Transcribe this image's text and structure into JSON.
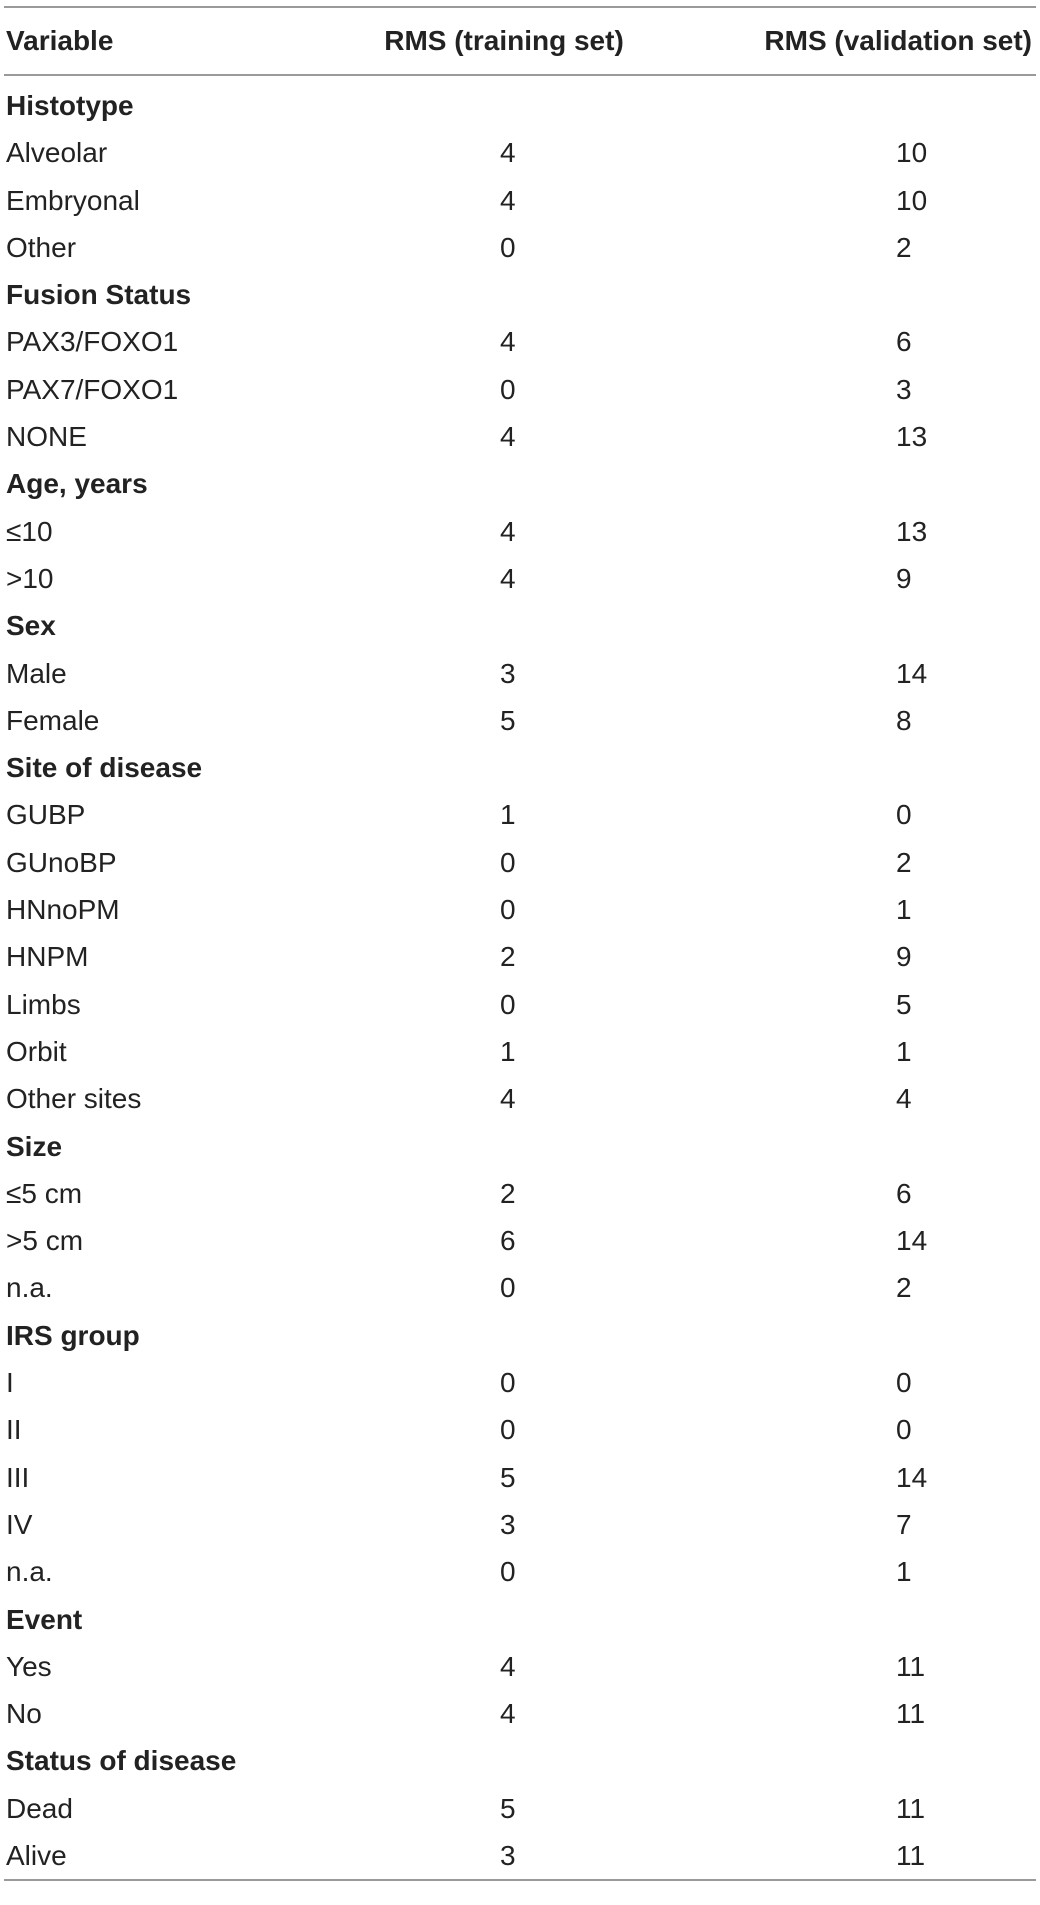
{
  "header": {
    "variable": "Variable",
    "training": "RMS (training set)",
    "validation": "RMS (validation set)"
  },
  "rows": [
    {
      "type": "section",
      "label": "Histotype"
    },
    {
      "type": "data",
      "label": "Alveolar",
      "training": "4",
      "validation": "10"
    },
    {
      "type": "data",
      "label": "Embryonal",
      "training": "4",
      "validation": "10"
    },
    {
      "type": "data",
      "label": "Other",
      "training": "0",
      "validation": "2"
    },
    {
      "type": "section",
      "label": "Fusion Status"
    },
    {
      "type": "data",
      "label": "PAX3/FOXO1",
      "training": "4",
      "validation": "6"
    },
    {
      "type": "data",
      "label": "PAX7/FOXO1",
      "training": "0",
      "validation": "3"
    },
    {
      "type": "data",
      "label": "NONE",
      "training": "4",
      "validation": "13"
    },
    {
      "type": "section",
      "label": "Age, years"
    },
    {
      "type": "data",
      "label": "≤10",
      "training": "4",
      "validation": "13"
    },
    {
      "type": "data",
      "label": ">10",
      "training": "4",
      "validation": "9"
    },
    {
      "type": "section",
      "label": "Sex"
    },
    {
      "type": "data",
      "label": "Male",
      "training": "3",
      "validation": "14"
    },
    {
      "type": "data",
      "label": "Female",
      "training": "5",
      "validation": "8"
    },
    {
      "type": "section",
      "label": "Site of disease"
    },
    {
      "type": "data",
      "label": "GUBP",
      "training": "1",
      "validation": "0"
    },
    {
      "type": "data",
      "label": "GUnoBP",
      "training": "0",
      "validation": "2"
    },
    {
      "type": "data",
      "label": "HNnoPM",
      "training": "0",
      "validation": "1"
    },
    {
      "type": "data",
      "label": "HNPM",
      "training": "2",
      "validation": "9"
    },
    {
      "type": "data",
      "label": "Limbs",
      "training": "0",
      "validation": "5"
    },
    {
      "type": "data",
      "label": "Orbit",
      "training": "1",
      "validation": "1"
    },
    {
      "type": "data",
      "label": "Other sites",
      "training": "4",
      "validation": "4"
    },
    {
      "type": "section",
      "label": "Size"
    },
    {
      "type": "data",
      "label": "≤5 cm",
      "training": "2",
      "validation": "6"
    },
    {
      "type": "data",
      "label": ">5 cm",
      "training": "6",
      "validation": "14"
    },
    {
      "type": "data",
      "label": "n.a.",
      "training": "0",
      "validation": "2"
    },
    {
      "type": "section",
      "label": "IRS group"
    },
    {
      "type": "data",
      "label": "I",
      "training": "0",
      "validation": "0"
    },
    {
      "type": "data",
      "label": "II",
      "training": "0",
      "validation": "0"
    },
    {
      "type": "data",
      "label": "III",
      "training": "5",
      "validation": "14"
    },
    {
      "type": "data",
      "label": "IV",
      "training": "3",
      "validation": "7"
    },
    {
      "type": "data",
      "label": "n.a.",
      "training": "0",
      "validation": "1"
    },
    {
      "type": "section",
      "label": "Event"
    },
    {
      "type": "data",
      "label": "Yes",
      "training": "4",
      "validation": "11"
    },
    {
      "type": "data",
      "label": "No",
      "training": "4",
      "validation": "11"
    },
    {
      "type": "section",
      "label": "Status of disease"
    },
    {
      "type": "data",
      "label": "Dead",
      "training": "5",
      "validation": "11"
    },
    {
      "type": "data",
      "label": "Alive",
      "training": "3",
      "validation": "11"
    }
  ]
}
